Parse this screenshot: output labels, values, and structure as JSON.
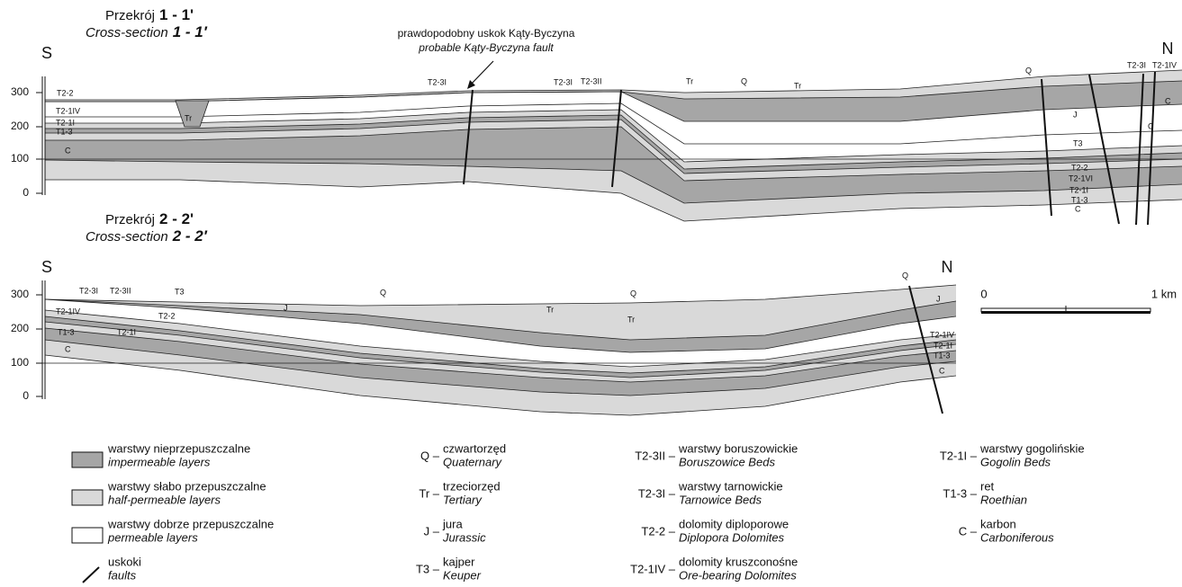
{
  "sections": [
    {
      "title": "Przekrój",
      "number": "1 - 1'",
      "title_en": "Cross-section",
      "number_en": "1 - 1′",
      "south": "S",
      "north": "N",
      "elevations": [
        300,
        200,
        100,
        0
      ],
      "fault_note": {
        "pl": "prawdopodobny uskok Kąty-Byczyna",
        "en": "probable Kąty-Byczyna fault"
      },
      "labels": [
        "T2-2",
        "T2-1IV",
        "T2-1I",
        "T1-3",
        "C",
        "Tr",
        "T2-3I",
        "T2-3I",
        "T2-3II",
        "Tr",
        "Q",
        "Tr",
        "Q",
        "J",
        "T3",
        "T2-2",
        "T2-1VI",
        "T2-1I",
        "T1-3",
        "C",
        "T2-3I",
        "T2-1IV",
        "C",
        "C"
      ]
    },
    {
      "title": "Przekrój",
      "number": "2 - 2'",
      "title_en": "Cross-section",
      "number_en": "2 - 2′",
      "south": "S",
      "north": "N",
      "elevations": [
        300,
        200,
        100,
        0
      ],
      "labels": [
        "T2-3I",
        "T2-3II",
        "T3",
        "T2-1IV",
        "T2-2",
        "J",
        "Q",
        "Tr",
        "Q",
        "Tr",
        "Q",
        "J",
        "T2-1IV",
        "T2-1I",
        "T1-3",
        "C",
        "T1-3",
        "T2-1I",
        "C"
      ]
    }
  ],
  "scale_bar": {
    "start": "0",
    "end": "1 km"
  },
  "legend": {
    "layers": [
      {
        "pl": "warstwy nieprzepuszczalne",
        "en": "impermeable layers"
      },
      {
        "pl": "warstwy słabo przepuszczalne",
        "en": "half-permeable layers"
      },
      {
        "pl": "warstwy dobrze przepuszczalne",
        "en": "permeable layers"
      },
      {
        "pl": "uskoki",
        "en": "faults"
      }
    ],
    "units": [
      [
        {
          "code": "Q –",
          "pl": "czwartorzęd",
          "en": "Quaternary"
        },
        {
          "code": "Tr –",
          "pl": "trzeciorzęd",
          "en": "Tertiary"
        },
        {
          "code": "J –",
          "pl": "jura",
          "en": "Jurassic"
        },
        {
          "code": "T3 –",
          "pl": "kajper",
          "en": "Keuper"
        }
      ],
      [
        {
          "code": "T2-3II –",
          "pl": "warstwy boruszowickie",
          "en": "Boruszowice Beds"
        },
        {
          "code": "T2-3I –",
          "pl": "warstwy tarnowickie",
          "en": "Tarnowice Beds"
        },
        {
          "code": "T2-2 –",
          "pl": "dolomity diploporowe",
          "en": "Diplopora Dolomites"
        },
        {
          "code": "T2-1IV –",
          "pl": "dolomity kruszconośne",
          "en": "Ore-bearing Dolomites"
        }
      ],
      [
        {
          "code": "T2-1I –",
          "pl": "warstwy gogolińskie",
          "en": "Gogolin Beds"
        },
        {
          "code": "T1-3 –",
          "pl": "ret",
          "en": "Roethian"
        },
        {
          "code": "C –",
          "pl": "karbon",
          "en": "Carboniferous"
        }
      ]
    ]
  }
}
